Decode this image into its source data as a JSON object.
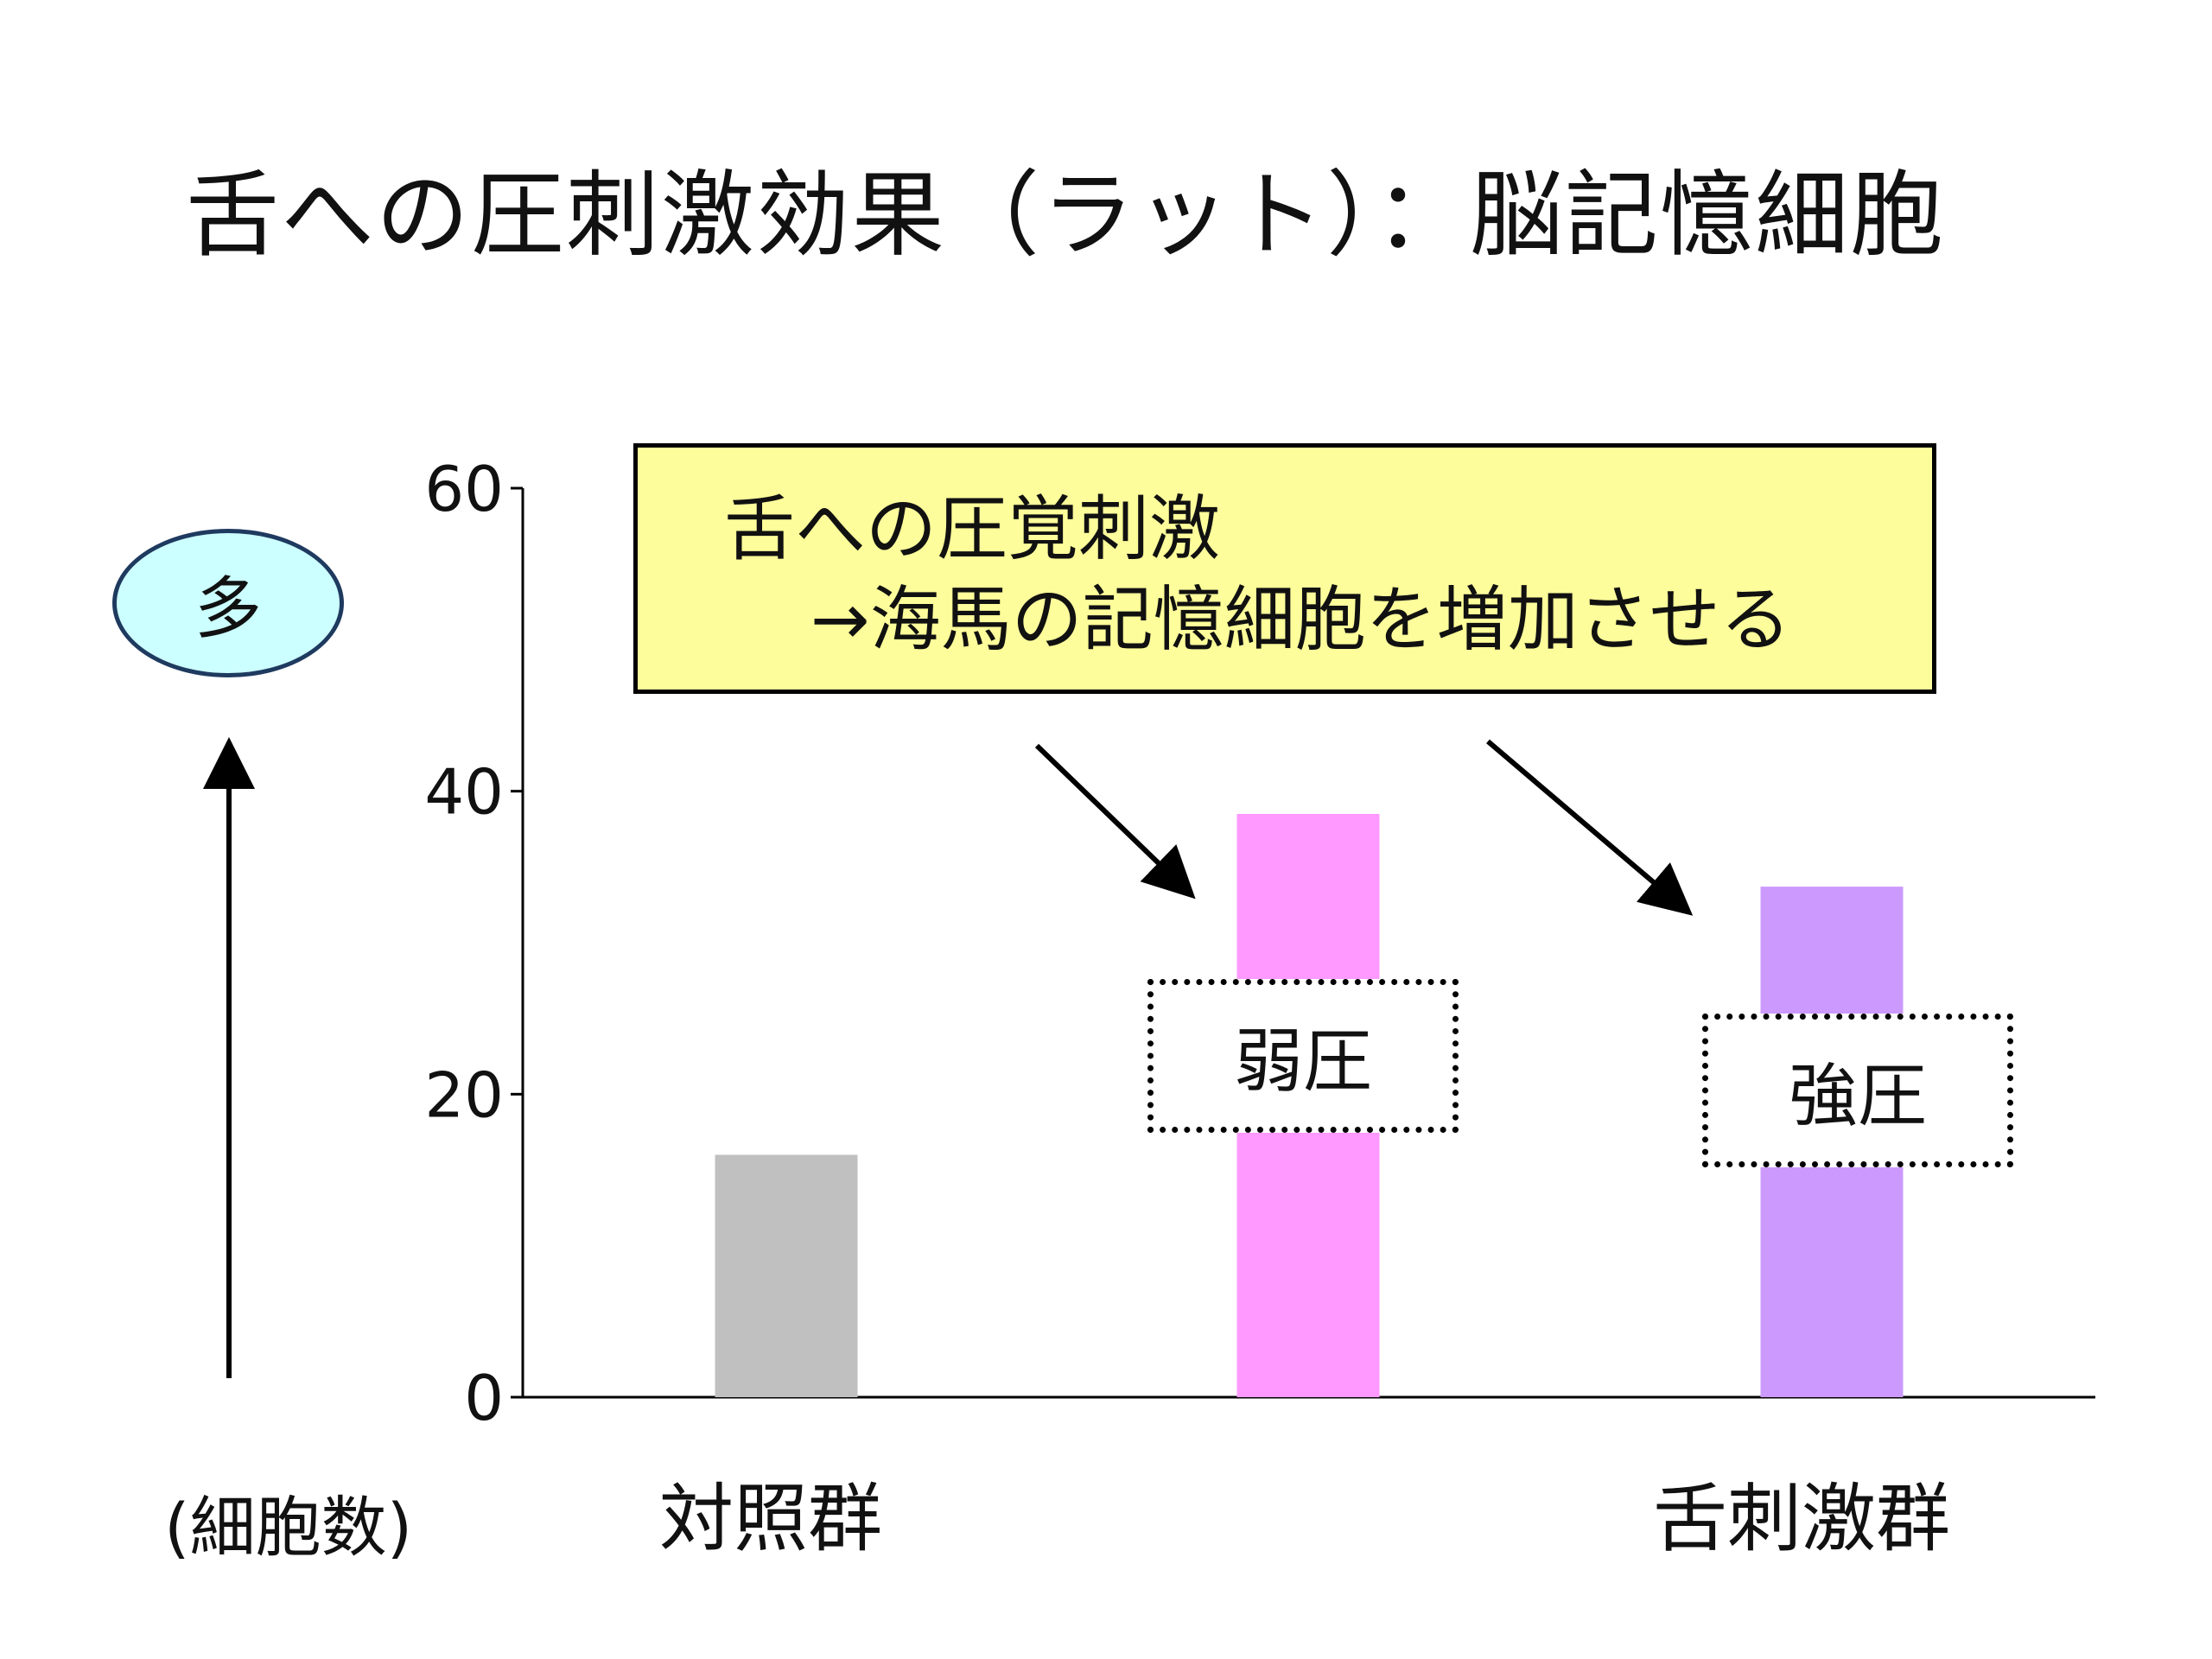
{
  "title": "舌への圧刺激効果（ラット）：脳記憶細胞",
  "callout": {
    "line1": "舌への圧覚刺激",
    "line2": "→海馬の記憶細胞を増加させる"
  },
  "direction_badge": "多",
  "unit_label": "(細胞数)",
  "group_labels": {
    "control": "対照群",
    "tongue_stimulation": "舌刺激群"
  },
  "bar_labels": {
    "weak": "弱圧",
    "strong": "強圧"
  },
  "colors": {
    "control_bar": "#c0c0c0",
    "weak_bar": "#ff99ff",
    "strong_bar": "#cc99ff",
    "callout_fill": "#fdfd9b",
    "badge_fill": "#ccffff"
  },
  "chart_data": {
    "type": "bar",
    "categories": [
      "対照群",
      "弱圧",
      "強圧"
    ],
    "values": [
      16,
      38.5,
      33.7
    ],
    "title": "舌への圧刺激効果（ラット）：脳記憶細胞",
    "ylabel": "(細胞数)",
    "ylim": [
      0,
      60
    ],
    "yticks": [
      0,
      20,
      40,
      60
    ],
    "grid": false,
    "legend": "none"
  }
}
